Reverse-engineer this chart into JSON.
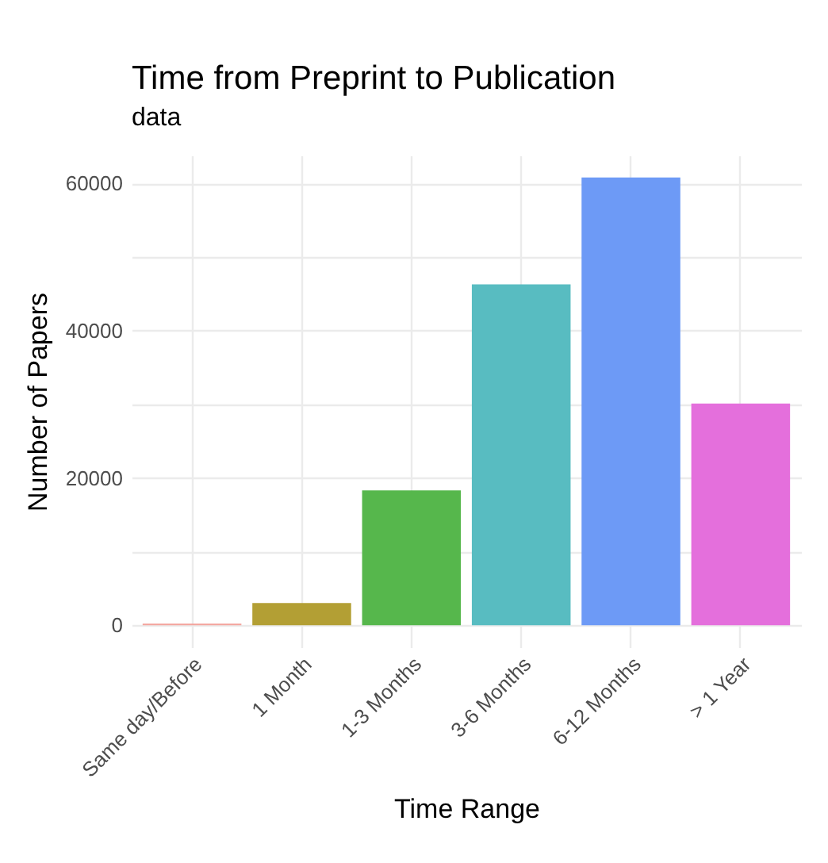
{
  "chart_data": {
    "type": "bar",
    "title": "Time from Preprint to Publication",
    "subtitle": "data",
    "xlabel": "Time Range",
    "ylabel": "Number of Papers",
    "categories": [
      "Same day/Before",
      "1 Month",
      "1-3 Months",
      "3-6 Months",
      "6-12 Months",
      "> 1 Year"
    ],
    "values": [
      200,
      3000,
      18300,
      46300,
      60800,
      30100
    ],
    "colors": [
      "#f3a39c",
      "#b39f34",
      "#56b74c",
      "#58bcc1",
      "#6d9af6",
      "#e46fdc"
    ],
    "ylim": [
      -3000,
      63800
    ],
    "yticks": [
      0,
      {
        "value": 10000,
        "label": null
      },
      20000,
      {
        "value": 30000,
        "label": null
      },
      40000,
      {
        "value": 50000,
        "label": null
      },
      60000
    ],
    "grid": true,
    "legend": false
  }
}
